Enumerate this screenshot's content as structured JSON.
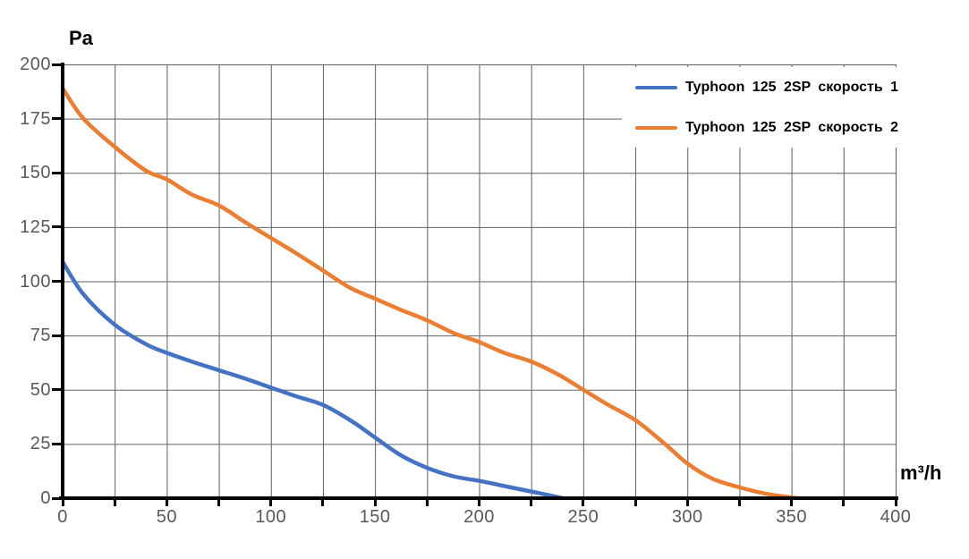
{
  "chart_data": {
    "type": "line",
    "title": "",
    "ylabel": "Pa",
    "xlabel": "m³/h",
    "xlim": [
      0,
      400
    ],
    "ylim": [
      0,
      200
    ],
    "grid": "on, every 25 units on both axes",
    "legend_position": "top-right",
    "x_axis": {
      "labels": [
        "0",
        "50",
        "100",
        "150",
        "200",
        "250",
        "300",
        "350",
        "400"
      ],
      "label_step": 50,
      "tick_step": 25,
      "max": 400
    },
    "y_axis": {
      "labels": [
        "0",
        "25",
        "50",
        "75",
        "100",
        "125",
        "150",
        "175",
        "200"
      ],
      "label_step": 25,
      "tick_step": 25,
      "max": 200
    },
    "series": [
      {
        "name": "Typhoon 125 2SP скорость 1",
        "color": "#4472C4",
        "points": [
          [
            0,
            109
          ],
          [
            10,
            94
          ],
          [
            25,
            80
          ],
          [
            40,
            71
          ],
          [
            50,
            67
          ],
          [
            62,
            63
          ],
          [
            75,
            59
          ],
          [
            88,
            55
          ],
          [
            100,
            51
          ],
          [
            112,
            47
          ],
          [
            125,
            43
          ],
          [
            138,
            36
          ],
          [
            150,
            28
          ],
          [
            162,
            20
          ],
          [
            175,
            14
          ],
          [
            188,
            10
          ],
          [
            200,
            8
          ],
          [
            215,
            5
          ],
          [
            228,
            2.5
          ],
          [
            240,
            0
          ]
        ]
      },
      {
        "name": "Typhoon 125 2SP скорость 2",
        "color": "#ED7D31",
        "points": [
          [
            0,
            189
          ],
          [
            10,
            175
          ],
          [
            25,
            162
          ],
          [
            40,
            151
          ],
          [
            50,
            147
          ],
          [
            62,
            140
          ],
          [
            75,
            135
          ],
          [
            88,
            127
          ],
          [
            100,
            120
          ],
          [
            112,
            113
          ],
          [
            125,
            105
          ],
          [
            138,
            97
          ],
          [
            150,
            92
          ],
          [
            162,
            87
          ],
          [
            175,
            82
          ],
          [
            188,
            76
          ],
          [
            200,
            72
          ],
          [
            212,
            67
          ],
          [
            225,
            63
          ],
          [
            238,
            57
          ],
          [
            250,
            50
          ],
          [
            262,
            43
          ],
          [
            275,
            36
          ],
          [
            288,
            26
          ],
          [
            300,
            16
          ],
          [
            312,
            9
          ],
          [
            325,
            5
          ],
          [
            338,
            2
          ],
          [
            353,
            0
          ]
        ]
      }
    ]
  },
  "axis_titles": {
    "pressure": "Pa",
    "flow": "m³/h"
  }
}
